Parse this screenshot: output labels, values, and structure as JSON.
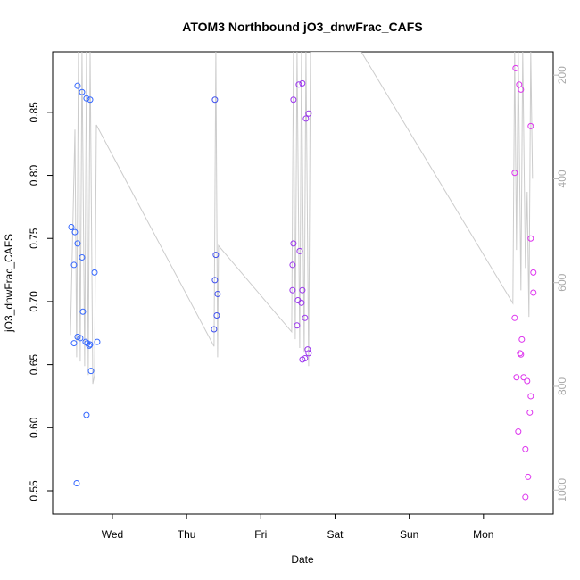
{
  "chart_data": {
    "type": "scatter",
    "title": "ATOM3 Northbound jO3_dnwFrac_CAFS",
    "x_label": "Date",
    "y_label": "jO3_dnwFrac_CAFS",
    "x": [
      0.447,
      0.483,
      0.483,
      0.495,
      0.531,
      0.531,
      0.531,
      0.519,
      0.567,
      0.591,
      0.591,
      0.603,
      0.639,
      0.651,
      0.651,
      0.663,
      0.688,
      0.7,
      0.7,
      0.712,
      0.76,
      0.796,
      2.382,
      2.394,
      2.382,
      2.418,
      2.406,
      2.37,
      3.44,
      3.512,
      3.56,
      3.644,
      3.608,
      3.44,
      3.428,
      3.524,
      3.428,
      3.5,
      3.548,
      3.56,
      3.596,
      3.488,
      3.632,
      3.644,
      3.56,
      3.596,
      6.433,
      6.481,
      6.505,
      6.421,
      6.637,
      6.637,
      6.673,
      6.673,
      6.421,
      6.517,
      6.493,
      6.505,
      6.445,
      6.541,
      6.589,
      6.637,
      6.625,
      6.469,
      6.565,
      6.601,
      6.565
    ],
    "values": [
      0.759,
      0.729,
      0.667,
      0.755,
      0.871,
      0.746,
      0.672,
      0.556,
      0.671,
      0.866,
      0.735,
      0.692,
      0.668,
      0.861,
      0.61,
      0.667,
      0.665,
      0.86,
      0.666,
      0.645,
      0.723,
      0.668,
      0.86,
      0.737,
      0.717,
      0.706,
      0.689,
      0.678,
      0.86,
      0.872,
      0.873,
      0.849,
      0.845,
      0.746,
      0.729,
      0.74,
      0.709,
      0.701,
      0.699,
      0.709,
      0.687,
      0.681,
      0.662,
      0.659,
      0.654,
      0.655,
      0.885,
      0.872,
      0.868,
      0.802,
      0.839,
      0.75,
      0.723,
      0.707,
      0.687,
      0.67,
      0.659,
      0.658,
      0.64,
      0.64,
      0.637,
      0.625,
      0.612,
      0.597,
      0.583,
      0.561,
      0.545
    ],
    "point_colors": [
      "#3366ff",
      "#3366ff",
      "#3366ff",
      "#3366ff",
      "#3366ff",
      "#3366ff",
      "#3366ff",
      "#3366ff",
      "#3366ff",
      "#3366ff",
      "#3366ff",
      "#3366ff",
      "#3366ff",
      "#3366ff",
      "#3366ff",
      "#3366ff",
      "#3366ff",
      "#3366ff",
      "#3366ff",
      "#3366ff",
      "#3366ff",
      "#3366ff",
      "#3f4fee",
      "#3f4fee",
      "#3f4fee",
      "#3f4fee",
      "#3f4fee",
      "#3f4fee",
      "#9a33ee",
      "#9a33ee",
      "#9a33ee",
      "#9a33ee",
      "#9a33ee",
      "#9a33ee",
      "#9a33ee",
      "#9a33ee",
      "#9a33ee",
      "#9a33ee",
      "#9a33ee",
      "#9a33ee",
      "#9a33ee",
      "#9a33ee",
      "#9a33ee",
      "#9a33ee",
      "#9a33ee",
      "#9a33ee",
      "#dd33ee",
      "#dd33ee",
      "#dd33ee",
      "#dd33ee",
      "#dd33ee",
      "#dd33ee",
      "#dd33ee",
      "#dd33ee",
      "#dd33ee",
      "#dd33ee",
      "#dd33ee",
      "#dd33ee",
      "#dd33ee",
      "#dd33ee",
      "#dd33ee",
      "#dd33ee",
      "#dd33ee",
      "#dd33ee",
      "#dd33ee",
      "#dd33ee",
      "#dd33ee"
    ],
    "line": {
      "axis": "y2",
      "color": "#cccccc",
      "x": [
        0.435,
        0.495,
        0.519,
        0.543,
        0.567,
        0.591,
        0.627,
        0.651,
        0.675,
        0.7,
        0.736,
        0.76,
        0.784,
        2.37,
        2.394,
        2.418,
        2.43,
        3.416,
        3.44,
        3.464,
        3.488,
        3.524,
        3.548,
        3.584,
        3.608,
        3.644,
        3.668,
        4.353,
        6.397,
        6.421,
        6.445,
        6.469,
        6.505,
        6.529,
        6.565,
        6.589,
        6.613,
        6.637,
        6.661
      ],
      "values": [
        701,
        305,
        744,
        155,
        752,
        155,
        761,
        155,
        778,
        155,
        795,
        778,
        296,
        723,
        155,
        744,
        529,
        695,
        155,
        709,
        155,
        726,
        155,
        735,
        155,
        761,
        155,
        155,
        640,
        155,
        537,
        155,
        615,
        155,
        572,
        425,
        666,
        155,
        400
      ]
    },
    "xlim": [
      0.195,
      6.94
    ],
    "xticks": [
      {
        "value": 1,
        "label": "Wed"
      },
      {
        "value": 2,
        "label": "Thu"
      },
      {
        "value": 3,
        "label": "Fri"
      },
      {
        "value": 4,
        "label": "Sat"
      },
      {
        "value": 5,
        "label": "Sun"
      },
      {
        "value": 6,
        "label": "Mon"
      }
    ],
    "ylim": [
      0.5316,
      0.898
    ],
    "yticks": [
      0.55,
      {
        "value": 0.6,
        "label": "0.60"
      },
      0.65,
      {
        "value": 0.7,
        "label": "0.70"
      },
      0.75,
      {
        "value": 0.8,
        "label": "0.80"
      },
      0.85
    ],
    "y2lim": [
      1046,
      155
    ],
    "y2ticks": [
      200,
      400,
      600,
      800,
      1000
    ]
  }
}
